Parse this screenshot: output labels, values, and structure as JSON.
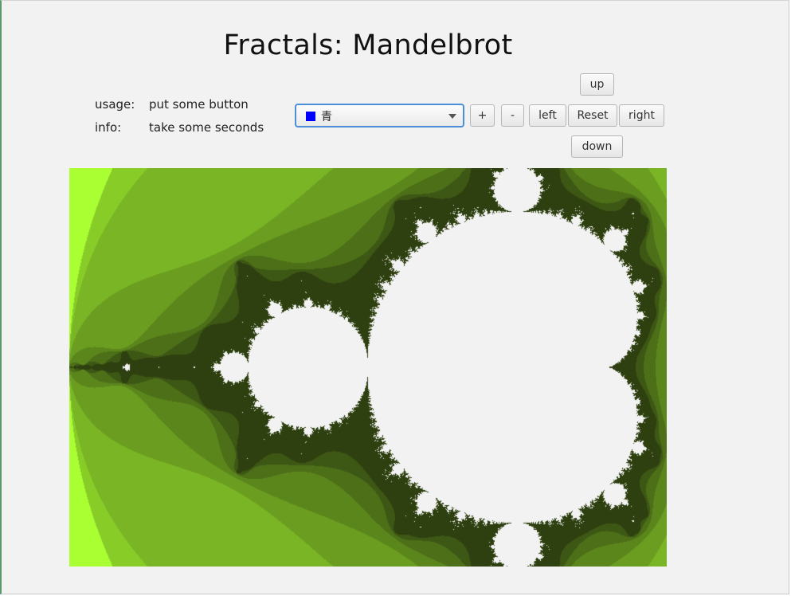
{
  "title": "Fractals: Mandelbrot",
  "usage": {
    "label": "usage:",
    "value": "put some button"
  },
  "info": {
    "label": "info:",
    "value": "take some seconds"
  },
  "color_select": {
    "value": "青",
    "swatch_color": "#0000ff",
    "icon": "chevron-down-icon"
  },
  "buttons": {
    "zoom_in": "+",
    "zoom_out": "-",
    "left": "left",
    "reset": "Reset",
    "right": "right",
    "up": "up",
    "down": "down"
  },
  "fractal": {
    "type": "Mandelbrot",
    "view": {
      "re_min": -2.0,
      "re_max": 0.5,
      "im_min": -0.8333,
      "im_max": 0.8333
    },
    "max_iterations": 80,
    "bands": 7,
    "colors": {
      "background": "#aaff33",
      "band_light": "#88cc28",
      "band_dark": "#2e4010",
      "inside": "#f2f2f2"
    }
  }
}
